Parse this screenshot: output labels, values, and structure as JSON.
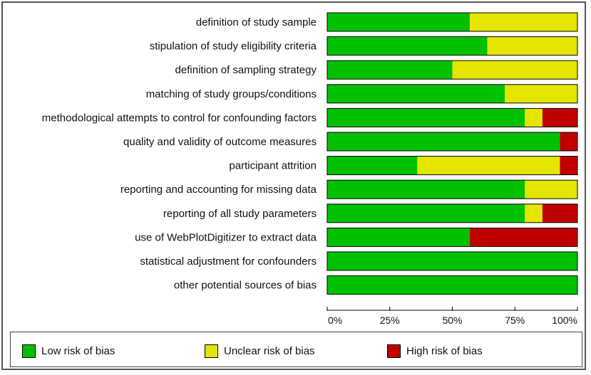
{
  "chart_data": {
    "type": "bar",
    "orientation": "horizontal",
    "stacked": true,
    "categories": [
      "definition of study sample",
      "stipulation of study eligibility criteria",
      "definition of sampling strategy",
      "matching of study groups/conditions",
      "methodological attempts to control for confounding factors",
      "quality and validity of outcome measures",
      "participant attrition",
      "reporting and accounting for missing data",
      "reporting of all study parameters",
      "use of WebPlotDigitizer to extract data",
      "statistical adjustment for confounders",
      "other potential sources of bias"
    ],
    "series": [
      {
        "name": "Low risk of bias",
        "color": "#00c000",
        "values": [
          57,
          64,
          50,
          71,
          79,
          93,
          36,
          79,
          79,
          57,
          100,
          100
        ]
      },
      {
        "name": "Unclear risk of bias",
        "color": "#e5e500",
        "values": [
          43,
          36,
          50,
          29,
          7,
          0,
          57,
          21,
          7,
          0,
          0,
          0
        ]
      },
      {
        "name": "High risk of bias",
        "color": "#c00000",
        "values": [
          0,
          0,
          0,
          0,
          14,
          7,
          7,
          0,
          14,
          43,
          0,
          0
        ]
      }
    ],
    "xticks": [
      "0%",
      "25%",
      "50%",
      "75%",
      "100%"
    ],
    "xlim": [
      0,
      100
    ],
    "legend_position": "bottom"
  }
}
